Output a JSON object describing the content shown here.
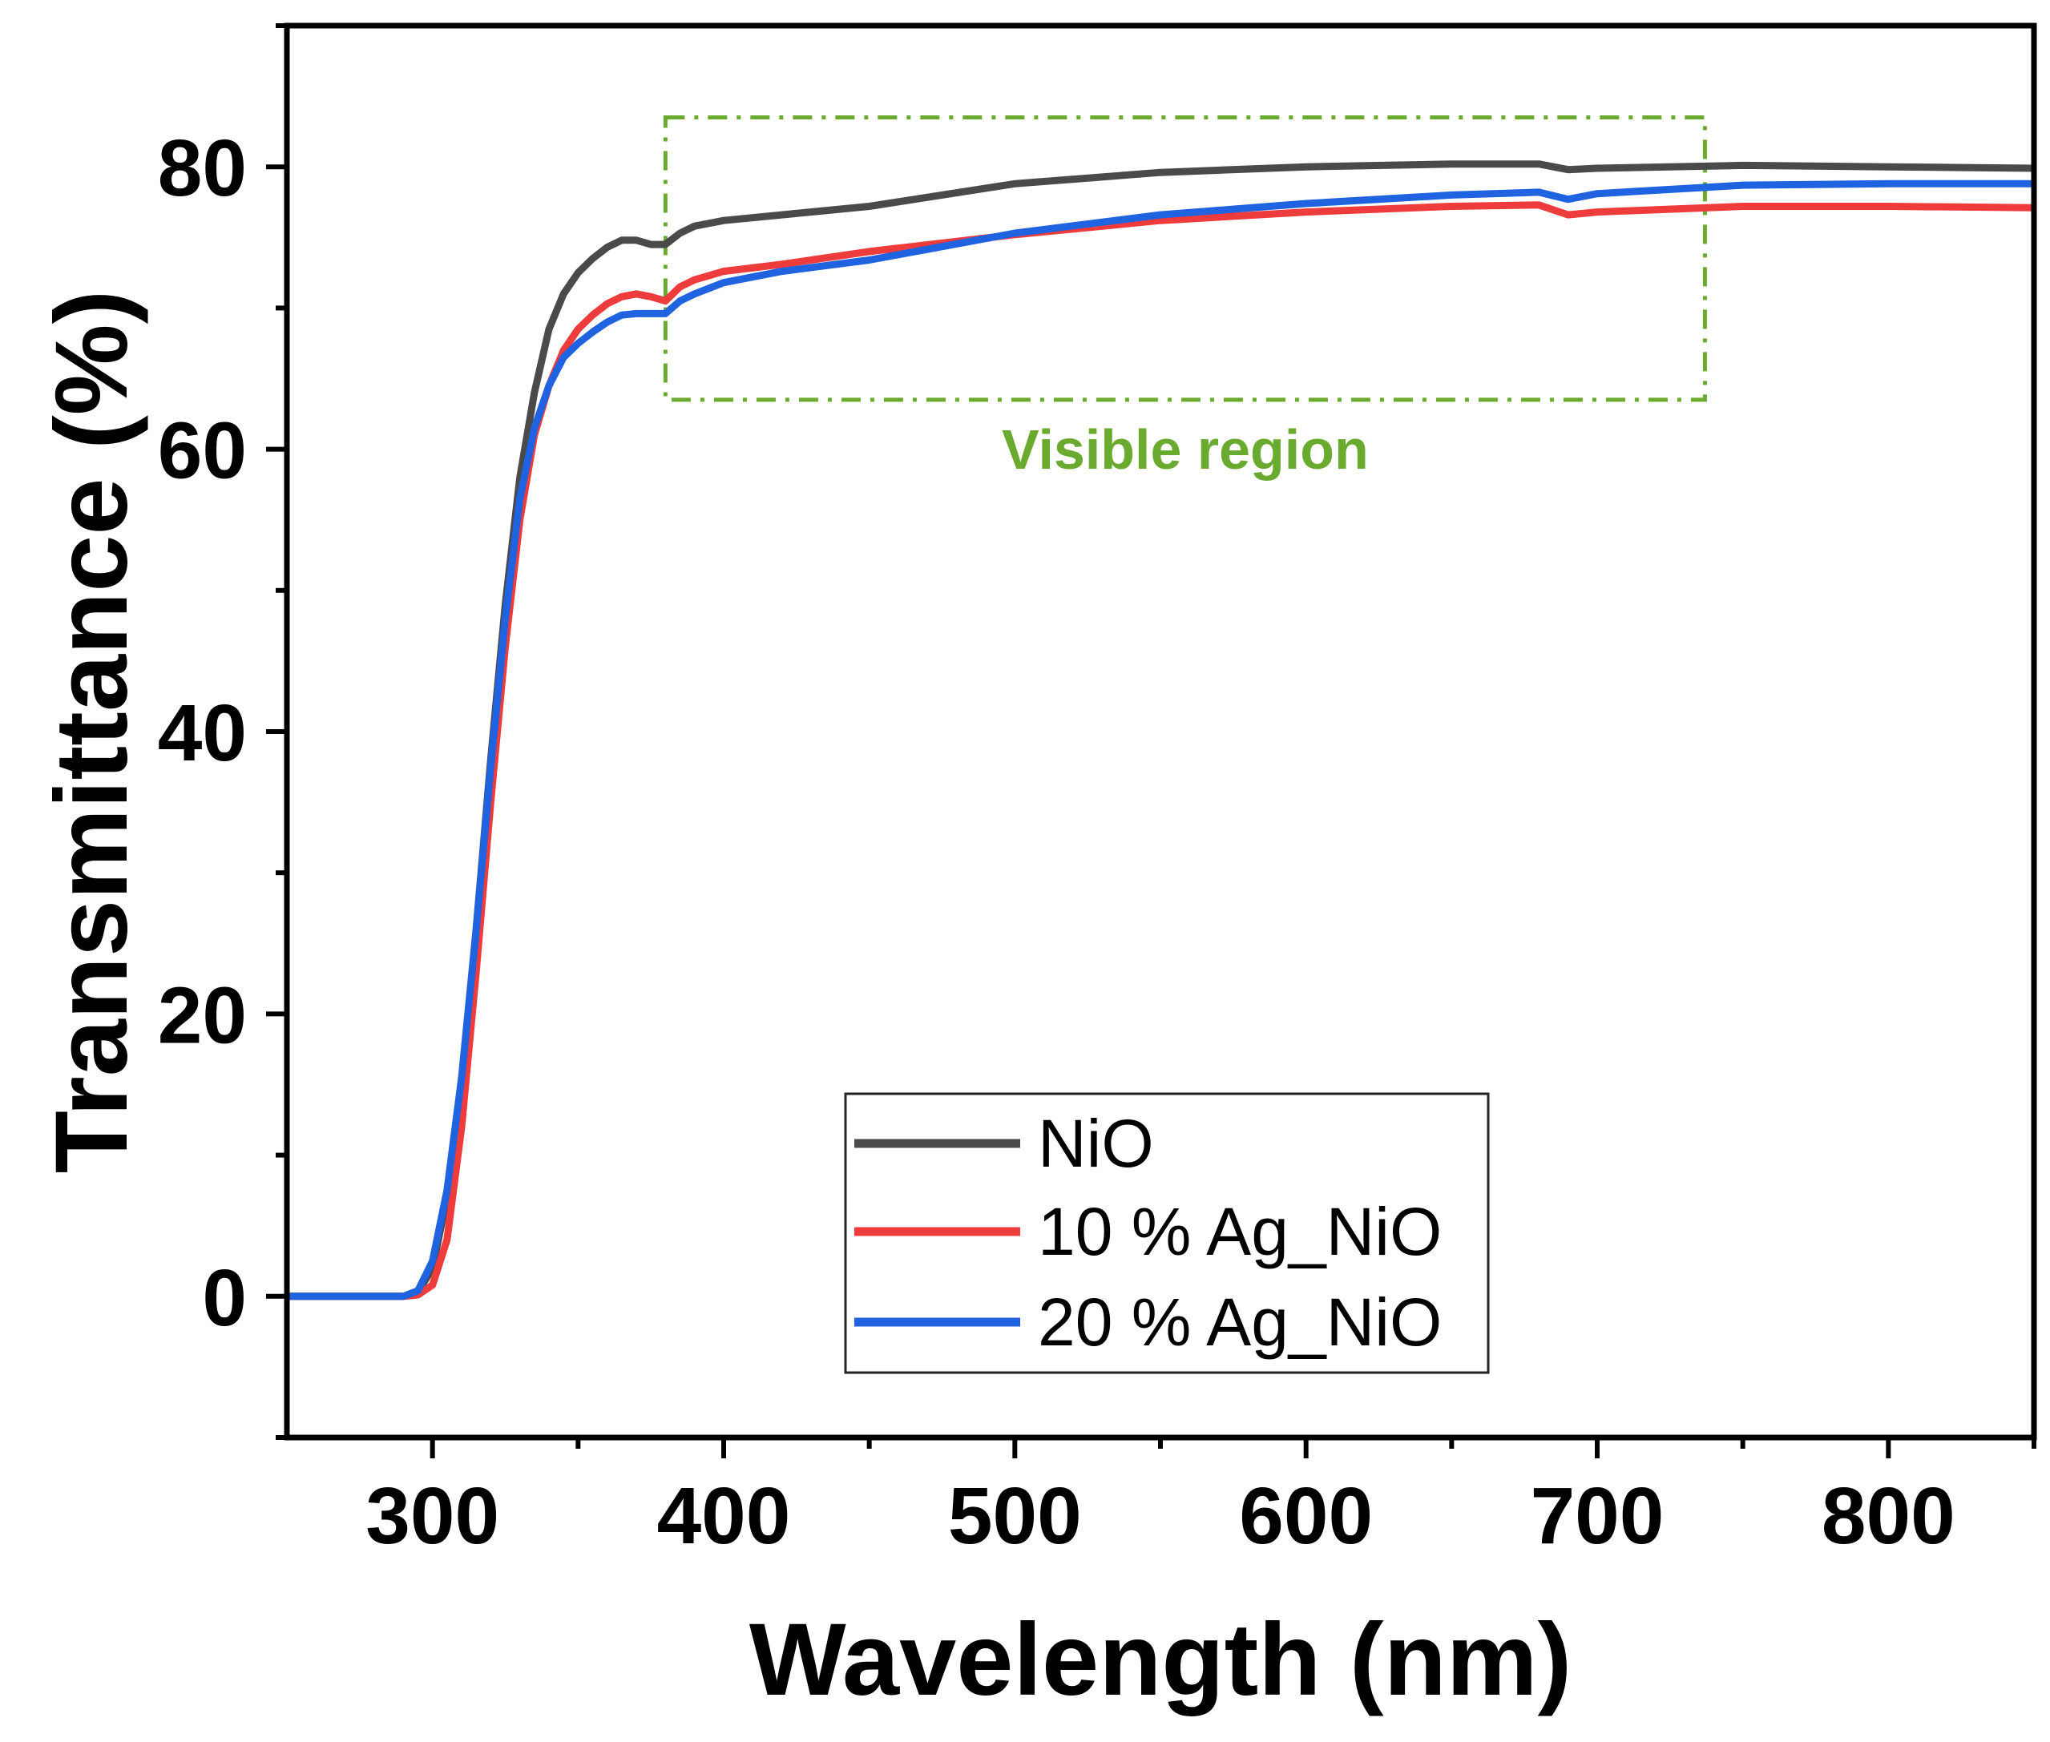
{
  "chart_data": {
    "type": "line",
    "title": "",
    "xlabel": "Wavelength (nm)",
    "ylabel": "Transmittance (%)",
    "xlim": [
      250,
      850
    ],
    "ylim": [
      -10,
      90
    ],
    "xticks": [
      300,
      400,
      500,
      600,
      700,
      800
    ],
    "xtick_labels": [
      "300",
      "400",
      "500",
      "600",
      "700",
      "800"
    ],
    "yticks": [
      0,
      20,
      40,
      60,
      80
    ],
    "ytick_labels": [
      "0",
      "20",
      "40",
      "60",
      "80"
    ],
    "grid": false,
    "legend_position": "bottom-center",
    "series": [
      {
        "name": "NiO",
        "color": "#4a4a4a",
        "x": [
          250,
          290,
          295,
          300,
          305,
          310,
          315,
          320,
          325,
          330,
          335,
          340,
          345,
          350,
          355,
          360,
          365,
          370,
          375,
          380,
          385,
          390,
          400,
          420,
          450,
          500,
          550,
          600,
          650,
          680,
          690,
          700,
          750,
          800,
          850
        ],
        "y": [
          0,
          0,
          0.3,
          2,
          7,
          15,
          26,
          38,
          49,
          58,
          64,
          68.5,
          71,
          72.5,
          73.5,
          74.3,
          74.8,
          74.8,
          74.5,
          74.5,
          75.3,
          75.8,
          76.2,
          76.6,
          77.2,
          78.8,
          79.6,
          80,
          80.2,
          80.2,
          79.8,
          79.9,
          80.1,
          80,
          79.9
        ]
      },
      {
        "name": "10 % Ag_NiO",
        "color": "#ee3b3b",
        "x": [
          250,
          290,
          295,
          300,
          305,
          310,
          315,
          320,
          325,
          330,
          335,
          340,
          345,
          350,
          355,
          360,
          365,
          370,
          375,
          380,
          385,
          390,
          400,
          420,
          450,
          500,
          550,
          600,
          650,
          680,
          690,
          700,
          750,
          800,
          850
        ],
        "y": [
          0,
          0,
          0.1,
          0.8,
          4,
          12,
          23,
          35,
          46,
          55,
          61,
          64.5,
          67,
          68.5,
          69.5,
          70.3,
          70.8,
          71,
          70.8,
          70.5,
          71.5,
          72,
          72.6,
          73.1,
          74,
          75.2,
          76.2,
          76.8,
          77.2,
          77.3,
          76.6,
          76.8,
          77.2,
          77.2,
          77.1
        ]
      },
      {
        "name": "20 % Ag_NiO",
        "color": "#1f63e0",
        "x": [
          250,
          290,
          295,
          300,
          305,
          310,
          315,
          320,
          325,
          330,
          335,
          340,
          345,
          350,
          355,
          360,
          365,
          370,
          375,
          380,
          385,
          390,
          400,
          420,
          450,
          500,
          550,
          600,
          650,
          680,
          690,
          700,
          750,
          800,
          850
        ],
        "y": [
          0,
          0,
          0.4,
          2.5,
          7.5,
          15.5,
          26,
          37.5,
          48,
          56.5,
          61.5,
          64.5,
          66.5,
          67.5,
          68.3,
          69,
          69.5,
          69.6,
          69.6,
          69.6,
          70.5,
          71,
          71.8,
          72.6,
          73.4,
          75.3,
          76.6,
          77.4,
          78,
          78.2,
          77.7,
          78.1,
          78.7,
          78.8,
          78.8
        ]
      }
    ],
    "annotations": [
      {
        "type": "dash-dot box",
        "text": "Visible region",
        "color": "#6aaa2e",
        "x_range": [
          380,
          737
        ],
        "y_range": [
          63.5,
          83.5
        ]
      }
    ]
  }
}
